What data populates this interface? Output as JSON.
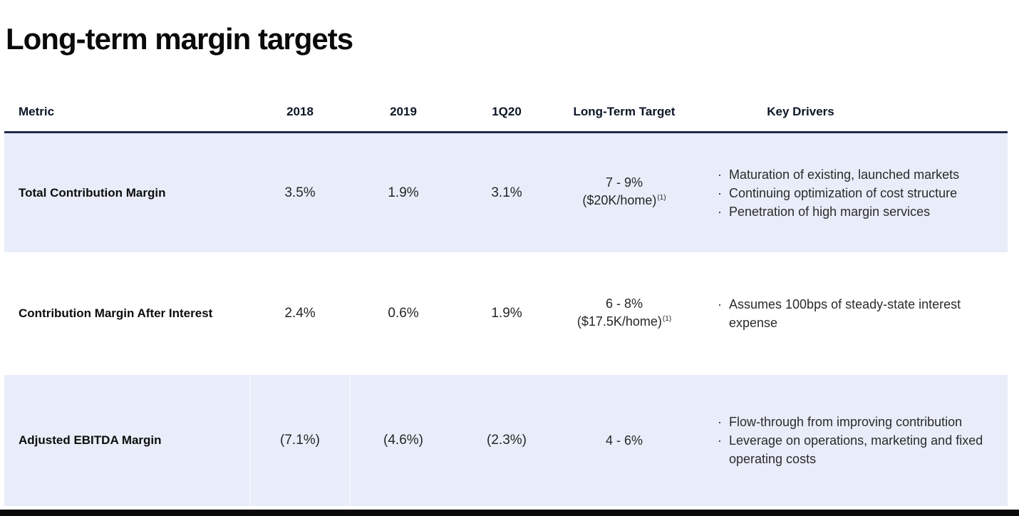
{
  "slide": {
    "title": "Long-term margin targets"
  },
  "table": {
    "headers": {
      "metric": "Metric",
      "y2018": "2018",
      "y2019": "2019",
      "q1_2020": "1Q20",
      "target": "Long-Term Target",
      "drivers": "Key Drivers"
    },
    "rows": [
      {
        "metric": "Total Contribution Margin",
        "y2018": "3.5%",
        "y2019": "1.9%",
        "q1_2020": "3.1%",
        "target_range": "7 - 9%",
        "target_detail": "($20K/home)",
        "target_footnote": "(1)",
        "drivers": [
          "Maturation of existing, launched markets",
          "Continuing optimization of cost structure",
          "Penetration of high margin services"
        ]
      },
      {
        "metric": "Contribution Margin After Interest",
        "y2018": "2.4%",
        "y2019": "0.6%",
        "q1_2020": "1.9%",
        "target_range": "6 - 8%",
        "target_detail": "($17.5K/home)",
        "target_footnote": "(1)",
        "drivers": [
          "Assumes 100bps of steady-state interest expense"
        ]
      },
      {
        "metric": "Adjusted EBITDA Margin",
        "y2018": "(7.1%)",
        "y2019": "(4.6%)",
        "q1_2020": "(2.3%)",
        "target_range": "4 - 6%",
        "drivers": [
          "Flow-through from improving contribution",
          "Leverage on operations, marketing and fixed operating costs"
        ]
      }
    ]
  },
  "colors": {
    "row_highlight": "#e8edf9",
    "header_rule": "#222c49",
    "bottom_bar": "#0a0a0a"
  }
}
